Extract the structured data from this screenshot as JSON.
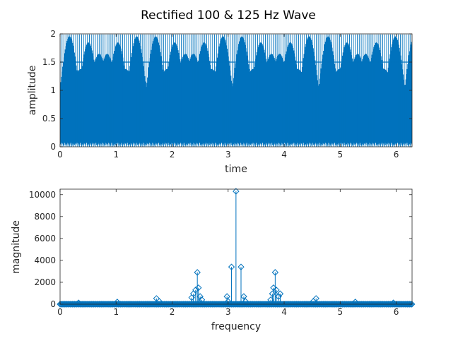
{
  "chart_data": [
    {
      "type": "line",
      "title": "Rectified 100 & 125 Hz Wave",
      "xlabel": "time",
      "ylabel": "amplitude",
      "xlim": [
        0,
        6.2832
      ],
      "ylim": [
        0,
        2
      ],
      "xticks": [
        0,
        1,
        2,
        3,
        4,
        5,
        6
      ],
      "yticks": [
        0,
        0.5,
        1,
        1.5,
        2
      ],
      "grid": false,
      "series_color": "#0072bd",
      "signal": {
        "expression": "|sin(2*pi*100*t)| + |sin(2*pi*125*t)|",
        "components_hz": [
          100,
          125
        ],
        "x_start": 0,
        "x_end": 6.2832
      }
    },
    {
      "type": "stem",
      "title": "",
      "xlabel": "frequency",
      "ylabel": "magnitude",
      "xlim": [
        0,
        6.2832
      ],
      "ylim": [
        0,
        10500
      ],
      "xticks": [
        0,
        1,
        2,
        3,
        4,
        5,
        6
      ],
      "yticks": [
        0,
        2000,
        4000,
        6000,
        8000,
        10000
      ],
      "grid": false,
      "series_color": "#0072bd",
      "marker": "diamond",
      "points": [
        {
          "x": 0.33,
          "y": 120
        },
        {
          "x": 1.02,
          "y": 200
        },
        {
          "x": 1.72,
          "y": 520
        },
        {
          "x": 1.77,
          "y": 260
        },
        {
          "x": 2.35,
          "y": 600
        },
        {
          "x": 2.38,
          "y": 950
        },
        {
          "x": 2.42,
          "y": 1300
        },
        {
          "x": 2.45,
          "y": 2900
        },
        {
          "x": 2.47,
          "y": 1500
        },
        {
          "x": 2.5,
          "y": 700
        },
        {
          "x": 2.53,
          "y": 400
        },
        {
          "x": 2.98,
          "y": 700
        },
        {
          "x": 3.0,
          "y": 250
        },
        {
          "x": 3.06,
          "y": 3400
        },
        {
          "x": 3.14,
          "y": 10300
        },
        {
          "x": 3.23,
          "y": 3400
        },
        {
          "x": 3.28,
          "y": 700
        },
        {
          "x": 3.31,
          "y": 250
        },
        {
          "x": 3.76,
          "y": 400
        },
        {
          "x": 3.79,
          "y": 950
        },
        {
          "x": 3.81,
          "y": 1500
        },
        {
          "x": 3.84,
          "y": 2900
        },
        {
          "x": 3.86,
          "y": 1300
        },
        {
          "x": 3.9,
          "y": 700
        },
        {
          "x": 3.93,
          "y": 950
        },
        {
          "x": 4.52,
          "y": 260
        },
        {
          "x": 4.57,
          "y": 520
        },
        {
          "x": 5.27,
          "y": 200
        },
        {
          "x": 5.95,
          "y": 120
        }
      ],
      "baseline_density": 0.02
    }
  ]
}
